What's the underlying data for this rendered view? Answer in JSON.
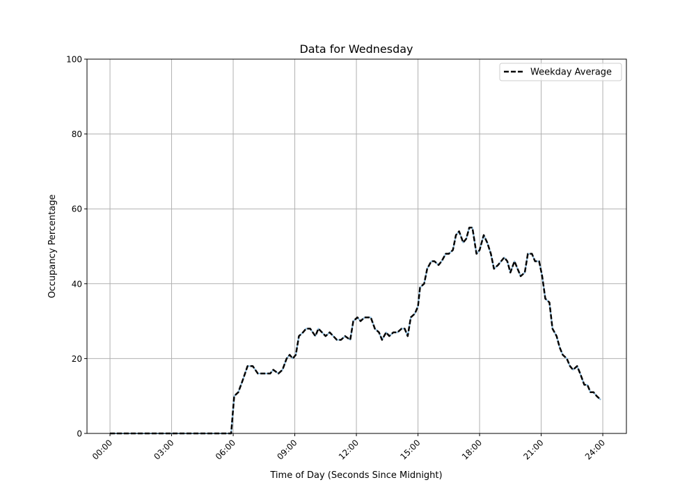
{
  "chart_data": {
    "type": "line",
    "title": "Data for Wednesday",
    "xlabel": "Time of Day (Seconds Since Midnight)",
    "ylabel": "Occupancy Percentage",
    "xlim": [
      -1.12,
      25.15
    ],
    "ylim": [
      0,
      100
    ],
    "grid": true,
    "legend_placement": "top-right",
    "x_ticks": [
      0,
      3,
      6,
      9,
      12,
      15,
      18,
      21,
      24
    ],
    "x_tick_labels": [
      "00:00",
      "03:00",
      "06:00",
      "09:00",
      "12:00",
      "15:00",
      "18:00",
      "21:00",
      "24:00"
    ],
    "y_ticks": [
      0,
      20,
      40,
      60,
      80,
      100
    ],
    "y_tick_labels": [
      "0",
      "20",
      "40",
      "60",
      "80",
      "100"
    ],
    "x_hours": [
      0,
      1,
      2,
      3,
      4,
      5,
      5.9,
      6.05,
      6.25,
      6.45,
      6.7,
      6.95,
      7.2,
      7.5,
      7.8,
      7.95,
      8.2,
      8.4,
      8.6,
      8.75,
      8.9,
      9.05,
      9.2,
      9.4,
      9.55,
      9.75,
      10.0,
      10.15,
      10.5,
      10.7,
      11.05,
      11.25,
      11.45,
      11.7,
      11.85,
      12.05,
      12.2,
      12.4,
      12.7,
      12.9,
      13.1,
      13.25,
      13.45,
      13.6,
      13.8,
      14.0,
      14.2,
      14.35,
      14.5,
      14.65,
      14.85,
      15.0,
      15.1,
      15.3,
      15.45,
      15.65,
      15.8,
      16.0,
      16.15,
      16.35,
      16.5,
      16.7,
      16.85,
      17.0,
      17.2,
      17.35,
      17.5,
      17.65,
      17.85,
      18.0,
      18.2,
      18.37,
      18.55,
      18.7,
      18.9,
      19.05,
      19.2,
      19.35,
      19.5,
      19.7,
      19.85,
      20.0,
      20.2,
      20.35,
      20.55,
      20.7,
      20.9,
      21.05,
      21.2,
      21.4,
      21.55,
      21.75,
      21.9,
      22.05,
      22.25,
      22.4,
      22.55,
      22.75,
      22.9,
      23.1,
      23.25,
      23.4,
      23.55,
      23.7,
      23.9
    ],
    "series": [
      {
        "name": "Wednesday",
        "color": "#8dbbdc",
        "style": "solid",
        "values": [
          0,
          0,
          0,
          0,
          0,
          0,
          0,
          10,
          11,
          14,
          18,
          18,
          16,
          16,
          16,
          17,
          16,
          17,
          20,
          21,
          20,
          21,
          26,
          27,
          28,
          28,
          26,
          28,
          26,
          27,
          25,
          25,
          26,
          25,
          30,
          31,
          30,
          31,
          31,
          28,
          27,
          25,
          27,
          26,
          27,
          27,
          28,
          28,
          26,
          31,
          32,
          34,
          39,
          40,
          44,
          46,
          46,
          45,
          46,
          48,
          48,
          49,
          53,
          54,
          51,
          52,
          55,
          55,
          48,
          49,
          53,
          51,
          48,
          44,
          45,
          46,
          47,
          46,
          43,
          46,
          44,
          42,
          43,
          48,
          48,
          46,
          46,
          42,
          36,
          35,
          28,
          26,
          23,
          21,
          20,
          18,
          17,
          18,
          16,
          13,
          13,
          11,
          11,
          10,
          9
        ]
      },
      {
        "name": "Weekday Average",
        "color": "#000000",
        "style": "dashed",
        "values": [
          0,
          0,
          0,
          0,
          0,
          0,
          0,
          10,
          11,
          14,
          18,
          18,
          16,
          16,
          16,
          17,
          16,
          17,
          20,
          21,
          20,
          21,
          26,
          27,
          28,
          28,
          26,
          28,
          26,
          27,
          25,
          25,
          26,
          25,
          30,
          31,
          30,
          31,
          31,
          28,
          27,
          25,
          27,
          26,
          27,
          27,
          28,
          28,
          26,
          31,
          32,
          34,
          39,
          40,
          44,
          46,
          46,
          45,
          46,
          48,
          48,
          49,
          53,
          54,
          51,
          52,
          55,
          55,
          48,
          49,
          53,
          51,
          48,
          44,
          45,
          46,
          47,
          46,
          43,
          46,
          44,
          42,
          43,
          48,
          48,
          46,
          46,
          42,
          36,
          35,
          28,
          26,
          23,
          21,
          20,
          18,
          17,
          18,
          16,
          13,
          13,
          11,
          11,
          10,
          9
        ]
      }
    ],
    "legend": [
      "Weekday Average"
    ]
  }
}
